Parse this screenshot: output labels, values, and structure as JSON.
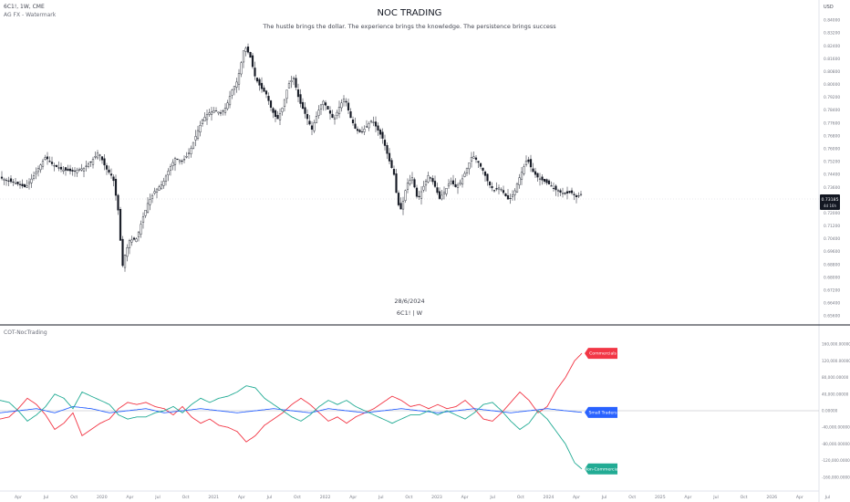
{
  "header": {
    "symbol_line": "6C1!, 1W, CME",
    "indicator_line": "AG FX - Watermark",
    "currency": "USD"
  },
  "watermark": {
    "title": "NOC TRADING",
    "subtitle": "The hustle brings the dollar. The experience brings the knowledge. The persistence brings success",
    "date": "28/6/2024",
    "symbol": "6C1! | W"
  },
  "price_badge": {
    "value": "0.73185",
    "countdown": "4d 16h"
  },
  "cot_pane": {
    "name": "COT-NocTrading"
  },
  "chart_data": [
    {
      "type": "candlestick",
      "title": "6C1!, 1W, CME",
      "ylim": [
        0.651,
        0.848
      ],
      "y_ticks": [
        "0.84000",
        "0.83200",
        "0.82400",
        "0.81600",
        "0.80800",
        "0.80000",
        "0.79200",
        "0.78400",
        "0.77600",
        "0.76800",
        "0.76000",
        "0.75200",
        "0.74400",
        "0.73600",
        "0.72800",
        "0.72000",
        "0.71200",
        "0.70400",
        "0.69600",
        "0.68800",
        "0.68000",
        "0.67200",
        "0.66400",
        "0.65600"
      ],
      "last_price": 0.73185,
      "path": [
        [
          0,
          0.742
        ],
        [
          10,
          0.74
        ],
        [
          20,
          0.738
        ],
        [
          28,
          0.736
        ],
        [
          38,
          0.744
        ],
        [
          50,
          0.755
        ],
        [
          58,
          0.75
        ],
        [
          68,
          0.747
        ],
        [
          80,
          0.746
        ],
        [
          92,
          0.748
        ],
        [
          100,
          0.752
        ],
        [
          108,
          0.758
        ],
        [
          116,
          0.748
        ],
        [
          124,
          0.742
        ],
        [
          130,
          0.72
        ],
        [
          134,
          0.686
        ],
        [
          137,
          0.694
        ],
        [
          142,
          0.703
        ],
        [
          150,
          0.704
        ],
        [
          156,
          0.716
        ],
        [
          162,
          0.726
        ],
        [
          170,
          0.734
        ],
        [
          178,
          0.738
        ],
        [
          186,
          0.748
        ],
        [
          192,
          0.754
        ],
        [
          200,
          0.752
        ],
        [
          208,
          0.758
        ],
        [
          216,
          0.77
        ],
        [
          222,
          0.778
        ],
        [
          228,
          0.782
        ],
        [
          236,
          0.784
        ],
        [
          242,
          0.782
        ],
        [
          248,
          0.786
        ],
        [
          254,
          0.796
        ],
        [
          260,
          0.802
        ],
        [
          264,
          0.812
        ],
        [
          268,
          0.824
        ],
        [
          274,
          0.818
        ],
        [
          280,
          0.804
        ],
        [
          286,
          0.798
        ],
        [
          292,
          0.794
        ],
        [
          298,
          0.784
        ],
        [
          304,
          0.778
        ],
        [
          310,
          0.786
        ],
        [
          316,
          0.8
        ],
        [
          322,
          0.804
        ],
        [
          328,
          0.79
        ],
        [
          336,
          0.78
        ],
        [
          342,
          0.772
        ],
        [
          348,
          0.782
        ],
        [
          354,
          0.79
        ],
        [
          360,
          0.784
        ],
        [
          366,
          0.778
        ],
        [
          372,
          0.786
        ],
        [
          378,
          0.792
        ],
        [
          384,
          0.78
        ],
        [
          390,
          0.772
        ],
        [
          396,
          0.77
        ],
        [
          402,
          0.774
        ],
        [
          408,
          0.778
        ],
        [
          414,
          0.772
        ],
        [
          420,
          0.766
        ],
        [
          426,
          0.754
        ],
        [
          432,
          0.744
        ],
        [
          436,
          0.726
        ],
        [
          440,
          0.722
        ],
        [
          446,
          0.738
        ],
        [
          452,
          0.742
        ],
        [
          458,
          0.728
        ],
        [
          464,
          0.736
        ],
        [
          470,
          0.744
        ],
        [
          476,
          0.738
        ],
        [
          482,
          0.729
        ],
        [
          488,
          0.734
        ],
        [
          494,
          0.74
        ],
        [
          500,
          0.736
        ],
        [
          506,
          0.74
        ],
        [
          512,
          0.748
        ],
        [
          518,
          0.756
        ],
        [
          524,
          0.752
        ],
        [
          530,
          0.746
        ],
        [
          536,
          0.738
        ],
        [
          542,
          0.734
        ],
        [
          548,
          0.736
        ],
        [
          554,
          0.731
        ],
        [
          558,
          0.728
        ],
        [
          564,
          0.733
        ],
        [
          568,
          0.74
        ],
        [
          574,
          0.748
        ],
        [
          578,
          0.754
        ],
        [
          584,
          0.746
        ],
        [
          590,
          0.742
        ],
        [
          596,
          0.74
        ],
        [
          602,
          0.738
        ],
        [
          608,
          0.735
        ],
        [
          614,
          0.733
        ],
        [
          620,
          0.732
        ],
        [
          626,
          0.733
        ],
        [
          632,
          0.73
        ],
        [
          638,
          0.732
        ]
      ]
    },
    {
      "type": "line",
      "title": "COT-NocTrading",
      "ylim": [
        -180000,
        180000
      ],
      "y_ticks": [
        "160,000.00000",
        "120,000.00000",
        "80,000.00000",
        "40,000.00000",
        "0.00000",
        "-40,000.00000",
        "-80,000.00000",
        "-120,000.00000",
        "-160,000.00000"
      ],
      "x_ticks": [
        "Apr",
        "Jul",
        "Oct",
        "2020",
        "Apr",
        "Jul",
        "Oct",
        "2021",
        "Apr",
        "Jul",
        "Oct",
        "2022",
        "Apr",
        "Jul",
        "Oct",
        "2023",
        "Apr",
        "Jul",
        "Oct",
        "2024",
        "Apr",
        "Jul",
        "Oct",
        "2025",
        "Apr",
        "Jul",
        "Oct",
        "2026",
        "Apr",
        "Jul"
      ],
      "series": [
        {
          "name": "Commercials",
          "color": "#f23645",
          "last_value": 138000,
          "points": [
            [
              0,
              -20000
            ],
            [
              10,
              -15000
            ],
            [
              20,
              5000
            ],
            [
              30,
              30000
            ],
            [
              40,
              15000
            ],
            [
              50,
              -10000
            ],
            [
              60,
              -45000
            ],
            [
              70,
              -30000
            ],
            [
              80,
              -5000
            ],
            [
              90,
              -60000
            ],
            [
              100,
              -45000
            ],
            [
              110,
              -30000
            ],
            [
              120,
              -20000
            ],
            [
              130,
              5000
            ],
            [
              140,
              20000
            ],
            [
              150,
              15000
            ],
            [
              160,
              20000
            ],
            [
              170,
              10000
            ],
            [
              180,
              5000
            ],
            [
              190,
              -10000
            ],
            [
              200,
              10000
            ],
            [
              210,
              -15000
            ],
            [
              220,
              -30000
            ],
            [
              230,
              -20000
            ],
            [
              240,
              -35000
            ],
            [
              250,
              -40000
            ],
            [
              260,
              -50000
            ],
            [
              270,
              -75000
            ],
            [
              280,
              -60000
            ],
            [
              290,
              -35000
            ],
            [
              300,
              -20000
            ],
            [
              310,
              -5000
            ],
            [
              320,
              15000
            ],
            [
              330,
              30000
            ],
            [
              340,
              15000
            ],
            [
              350,
              -5000
            ],
            [
              360,
              -25000
            ],
            [
              370,
              -15000
            ],
            [
              380,
              -30000
            ],
            [
              390,
              -15000
            ],
            [
              400,
              -5000
            ],
            [
              410,
              5000
            ],
            [
              420,
              20000
            ],
            [
              430,
              35000
            ],
            [
              440,
              25000
            ],
            [
              450,
              10000
            ],
            [
              460,
              15000
            ],
            [
              470,
              5000
            ],
            [
              480,
              15000
            ],
            [
              490,
              5000
            ],
            [
              500,
              10000
            ],
            [
              510,
              25000
            ],
            [
              520,
              5000
            ],
            [
              530,
              -20000
            ],
            [
              540,
              -25000
            ],
            [
              550,
              -5000
            ],
            [
              560,
              20000
            ],
            [
              570,
              45000
            ],
            [
              580,
              25000
            ],
            [
              590,
              -5000
            ],
            [
              600,
              10000
            ],
            [
              610,
              50000
            ],
            [
              620,
              80000
            ],
            [
              630,
              120000
            ],
            [
              638,
              138000
            ]
          ]
        },
        {
          "name": "Small Traders",
          "color": "#2962ff",
          "last_value": -4000,
          "points": [
            [
              0,
              -5000
            ],
            [
              20,
              0
            ],
            [
              40,
              5000
            ],
            [
              60,
              -5000
            ],
            [
              80,
              10000
            ],
            [
              100,
              5000
            ],
            [
              120,
              -5000
            ],
            [
              140,
              0
            ],
            [
              160,
              5000
            ],
            [
              180,
              -5000
            ],
            [
              200,
              0
            ],
            [
              220,
              5000
            ],
            [
              240,
              0
            ],
            [
              260,
              -5000
            ],
            [
              280,
              0
            ],
            [
              300,
              5000
            ],
            [
              320,
              0
            ],
            [
              340,
              -5000
            ],
            [
              360,
              5000
            ],
            [
              380,
              0
            ],
            [
              400,
              -5000
            ],
            [
              420,
              0
            ],
            [
              440,
              5000
            ],
            [
              460,
              0
            ],
            [
              480,
              -5000
            ],
            [
              500,
              0
            ],
            [
              520,
              5000
            ],
            [
              540,
              0
            ],
            [
              560,
              -5000
            ],
            [
              580,
              0
            ],
            [
              600,
              5000
            ],
            [
              620,
              0
            ],
            [
              638,
              -4000
            ]
          ]
        },
        {
          "name": "Non-Commercials",
          "color": "#22ab94",
          "last_value": -140000,
          "points": [
            [
              0,
              25000
            ],
            [
              10,
              20000
            ],
            [
              20,
              0
            ],
            [
              30,
              -25000
            ],
            [
              40,
              -10000
            ],
            [
              50,
              10000
            ],
            [
              60,
              40000
            ],
            [
              70,
              30000
            ],
            [
              80,
              5000
            ],
            [
              90,
              45000
            ],
            [
              100,
              35000
            ],
            [
              110,
              25000
            ],
            [
              120,
              15000
            ],
            [
              130,
              -10000
            ],
            [
              140,
              -20000
            ],
            [
              150,
              -15000
            ],
            [
              160,
              -15000
            ],
            [
              170,
              -5000
            ],
            [
              180,
              0
            ],
            [
              190,
              10000
            ],
            [
              200,
              -5000
            ],
            [
              210,
              15000
            ],
            [
              220,
              30000
            ],
            [
              230,
              20000
            ],
            [
              240,
              30000
            ],
            [
              250,
              35000
            ],
            [
              260,
              45000
            ],
            [
              270,
              60000
            ],
            [
              280,
              55000
            ],
            [
              290,
              30000
            ],
            [
              300,
              15000
            ],
            [
              310,
              0
            ],
            [
              320,
              -15000
            ],
            [
              330,
              -25000
            ],
            [
              340,
              -10000
            ],
            [
              350,
              10000
            ],
            [
              360,
              25000
            ],
            [
              370,
              15000
            ],
            [
              380,
              25000
            ],
            [
              390,
              10000
            ],
            [
              400,
              0
            ],
            [
              410,
              -10000
            ],
            [
              420,
              -20000
            ],
            [
              430,
              -30000
            ],
            [
              440,
              -20000
            ],
            [
              450,
              -10000
            ],
            [
              460,
              -10000
            ],
            [
              470,
              0
            ],
            [
              480,
              -10000
            ],
            [
              490,
              0
            ],
            [
              500,
              -10000
            ],
            [
              510,
              -20000
            ],
            [
              520,
              -5000
            ],
            [
              530,
              15000
            ],
            [
              540,
              20000
            ],
            [
              550,
              0
            ],
            [
              560,
              -25000
            ],
            [
              570,
              -45000
            ],
            [
              580,
              -30000
            ],
            [
              590,
              0
            ],
            [
              600,
              -20000
            ],
            [
              610,
              -50000
            ],
            [
              620,
              -80000
            ],
            [
              630,
              -125000
            ],
            [
              638,
              -140000
            ]
          ]
        }
      ]
    }
  ]
}
